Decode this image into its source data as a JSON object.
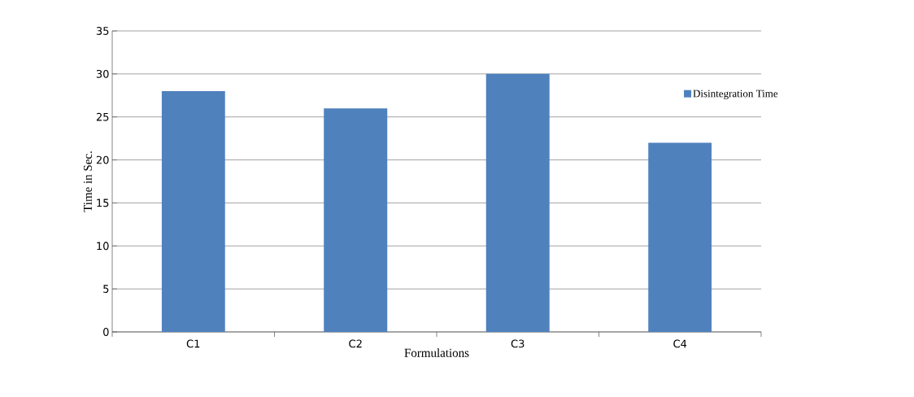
{
  "chart_data": {
    "type": "bar",
    "xlabel": "Formulations",
    "ylabel": "Time in Sec.",
    "categories": [
      "C1",
      "C2",
      "C3",
      "C4"
    ],
    "series": [
      {
        "name": "Disintegration Time",
        "color": "#4f81bd",
        "values": [
          28,
          26,
          30,
          22
        ]
      }
    ],
    "ylim": [
      0,
      35
    ],
    "yticks": [
      0,
      5,
      10,
      15,
      20,
      25,
      30,
      35
    ],
    "grid": "y",
    "legend": "right"
  }
}
